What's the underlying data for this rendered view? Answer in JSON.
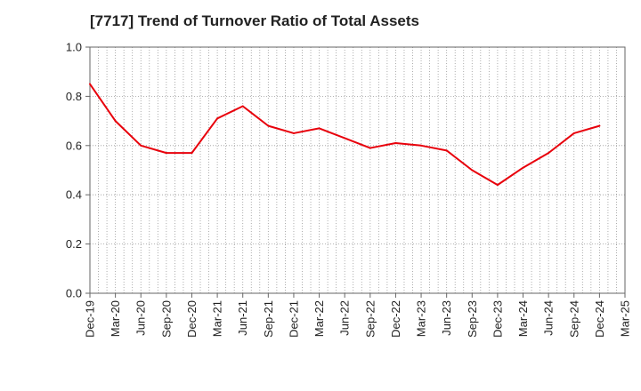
{
  "chart_data": {
    "type": "line",
    "title": "[7717]  Trend of Turnover Ratio of Total Assets",
    "xlabel": "",
    "ylabel": "",
    "ylim": [
      0.0,
      1.0
    ],
    "y_ticks": [
      "0.0",
      "0.2",
      "0.4",
      "0.6",
      "0.8",
      "1.0"
    ],
    "x_tick_labels": [
      "Dec-19",
      "Mar-20",
      "Jun-20",
      "Sep-20",
      "Dec-20",
      "Mar-21",
      "Jun-21",
      "Sep-21",
      "Dec-21",
      "Mar-22",
      "Jun-22",
      "Sep-22",
      "Dec-22",
      "Mar-23",
      "Jun-23",
      "Sep-23",
      "Dec-23",
      "Mar-24",
      "Jun-24",
      "Sep-24",
      "Dec-24",
      "Mar-25"
    ],
    "grid": true,
    "series": [
      {
        "color": "#e8000b",
        "x": [
          "Dec-19",
          "Mar-20",
          "Jun-20",
          "Sep-20",
          "Dec-20",
          "Mar-21",
          "Jun-21",
          "Sep-21",
          "Dec-21",
          "Mar-22",
          "Jun-22",
          "Sep-22",
          "Dec-22",
          "Mar-23",
          "Jun-23",
          "Sep-23",
          "Dec-23",
          "Mar-24",
          "Jun-24",
          "Sep-24",
          "Dec-24"
        ],
        "values": [
          0.85,
          0.7,
          0.6,
          0.57,
          0.57,
          0.71,
          0.76,
          0.68,
          0.65,
          0.67,
          0.63,
          0.59,
          0.61,
          0.6,
          0.58,
          0.5,
          0.44,
          0.51,
          0.57,
          0.65,
          0.68
        ]
      }
    ]
  }
}
